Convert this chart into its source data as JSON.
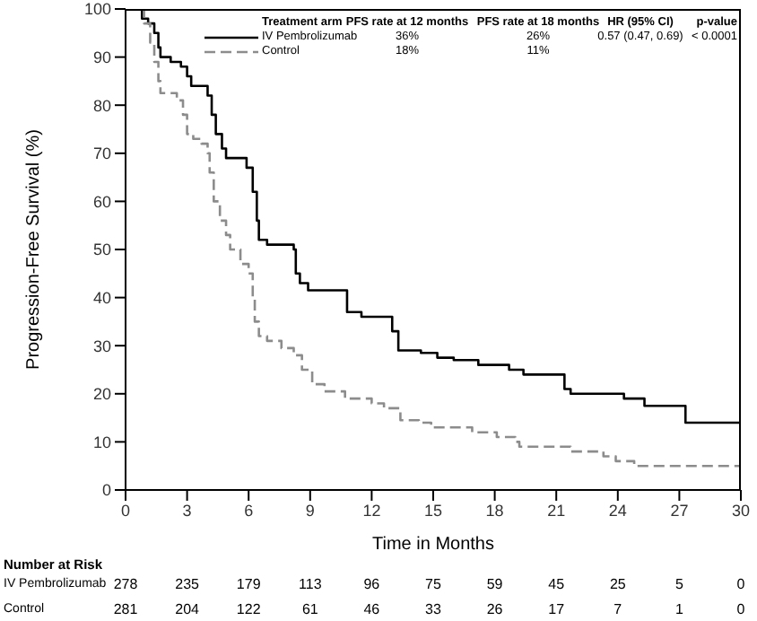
{
  "chart_data": {
    "type": "step",
    "xlabel": "Time in Months",
    "ylabel": "Progression-Free Survival (%)",
    "xlim": [
      0,
      30
    ],
    "xticks": [
      0,
      3,
      6,
      9,
      12,
      15,
      18,
      21,
      24,
      27,
      30
    ],
    "ylim": [
      0,
      100
    ],
    "yticks": [
      0,
      10,
      20,
      30,
      40,
      50,
      60,
      70,
      80,
      90,
      100
    ],
    "grid": false,
    "legend": "top",
    "marker": "none",
    "series": [
      {
        "name": "IV Pembrolizumab",
        "color": "#000000",
        "line_style": "solid",
        "x": [
          0,
          0.8,
          1.1,
          1.4,
          1.6,
          1.7,
          2.2,
          2.7,
          3,
          3.2,
          4,
          4.2,
          4.4,
          4.7,
          4.9,
          5.9,
          6.2,
          6.4,
          6.5,
          6.9,
          8.2,
          8.3,
          8.5,
          8.9,
          10.8,
          11.5,
          13,
          13.3,
          14.4,
          15.2,
          16,
          17.2,
          18.7,
          19.4,
          21.4,
          21.7,
          23.7,
          24.3,
          25.3,
          27.3,
          30
        ],
        "values": [
          100,
          98,
          97,
          95,
          92,
          90,
          89,
          88,
          86,
          84,
          82,
          78,
          74,
          71,
          69,
          67,
          62,
          56,
          52,
          51,
          50,
          45,
          43,
          41.5,
          37,
          36,
          33,
          29,
          28.5,
          27.5,
          27,
          26,
          25,
          24,
          21,
          20,
          20,
          19,
          17.5,
          14,
          14
        ]
      },
      {
        "name": "Control",
        "color": "#8c8c8c",
        "line_style": "dashed",
        "x": [
          0,
          0.9,
          1.2,
          1.4,
          1.6,
          1.7,
          2.5,
          2.8,
          3,
          3.3,
          3.7,
          4,
          4.1,
          4.3,
          4.6,
          4.9,
          5.1,
          5.6,
          6,
          6.2,
          6.3,
          6.5,
          6.9,
          7.6,
          8.2,
          8.6,
          9.1,
          9.7,
          10.7,
          12,
          12.6,
          13.4,
          14.3,
          14.9,
          16.9,
          18.1,
          19,
          19.2,
          21.7,
          23.3,
          23.9,
          24.8,
          30
        ],
        "values": [
          100,
          97,
          93,
          89,
          85,
          82.5,
          81,
          78,
          74,
          73,
          72,
          70,
          66,
          60,
          56,
          53,
          50,
          47,
          45,
          40,
          35,
          32,
          31,
          29.5,
          28,
          25,
          22,
          20.5,
          19,
          18,
          17,
          14.5,
          14,
          13,
          12,
          11,
          10,
          9,
          8,
          7,
          6,
          5,
          5
        ]
      }
    ],
    "annotations": [
      "Treatment arm",
      "PFS rate at 12 months",
      "PFS rate at 18 months",
      "HR (95% CI)",
      "p-value",
      "36%",
      "26%",
      "0.57 (0.47, 0.69)",
      "< 0.0001",
      "18%",
      "11%",
      "Number at Risk",
      "278",
      "235",
      "179",
      "113",
      "96",
      "75",
      "59",
      "45",
      "25",
      "5",
      "0",
      "281",
      "204",
      "122",
      "61",
      "46",
      "33",
      "26",
      "17",
      "7",
      "1",
      "0"
    ]
  }
}
